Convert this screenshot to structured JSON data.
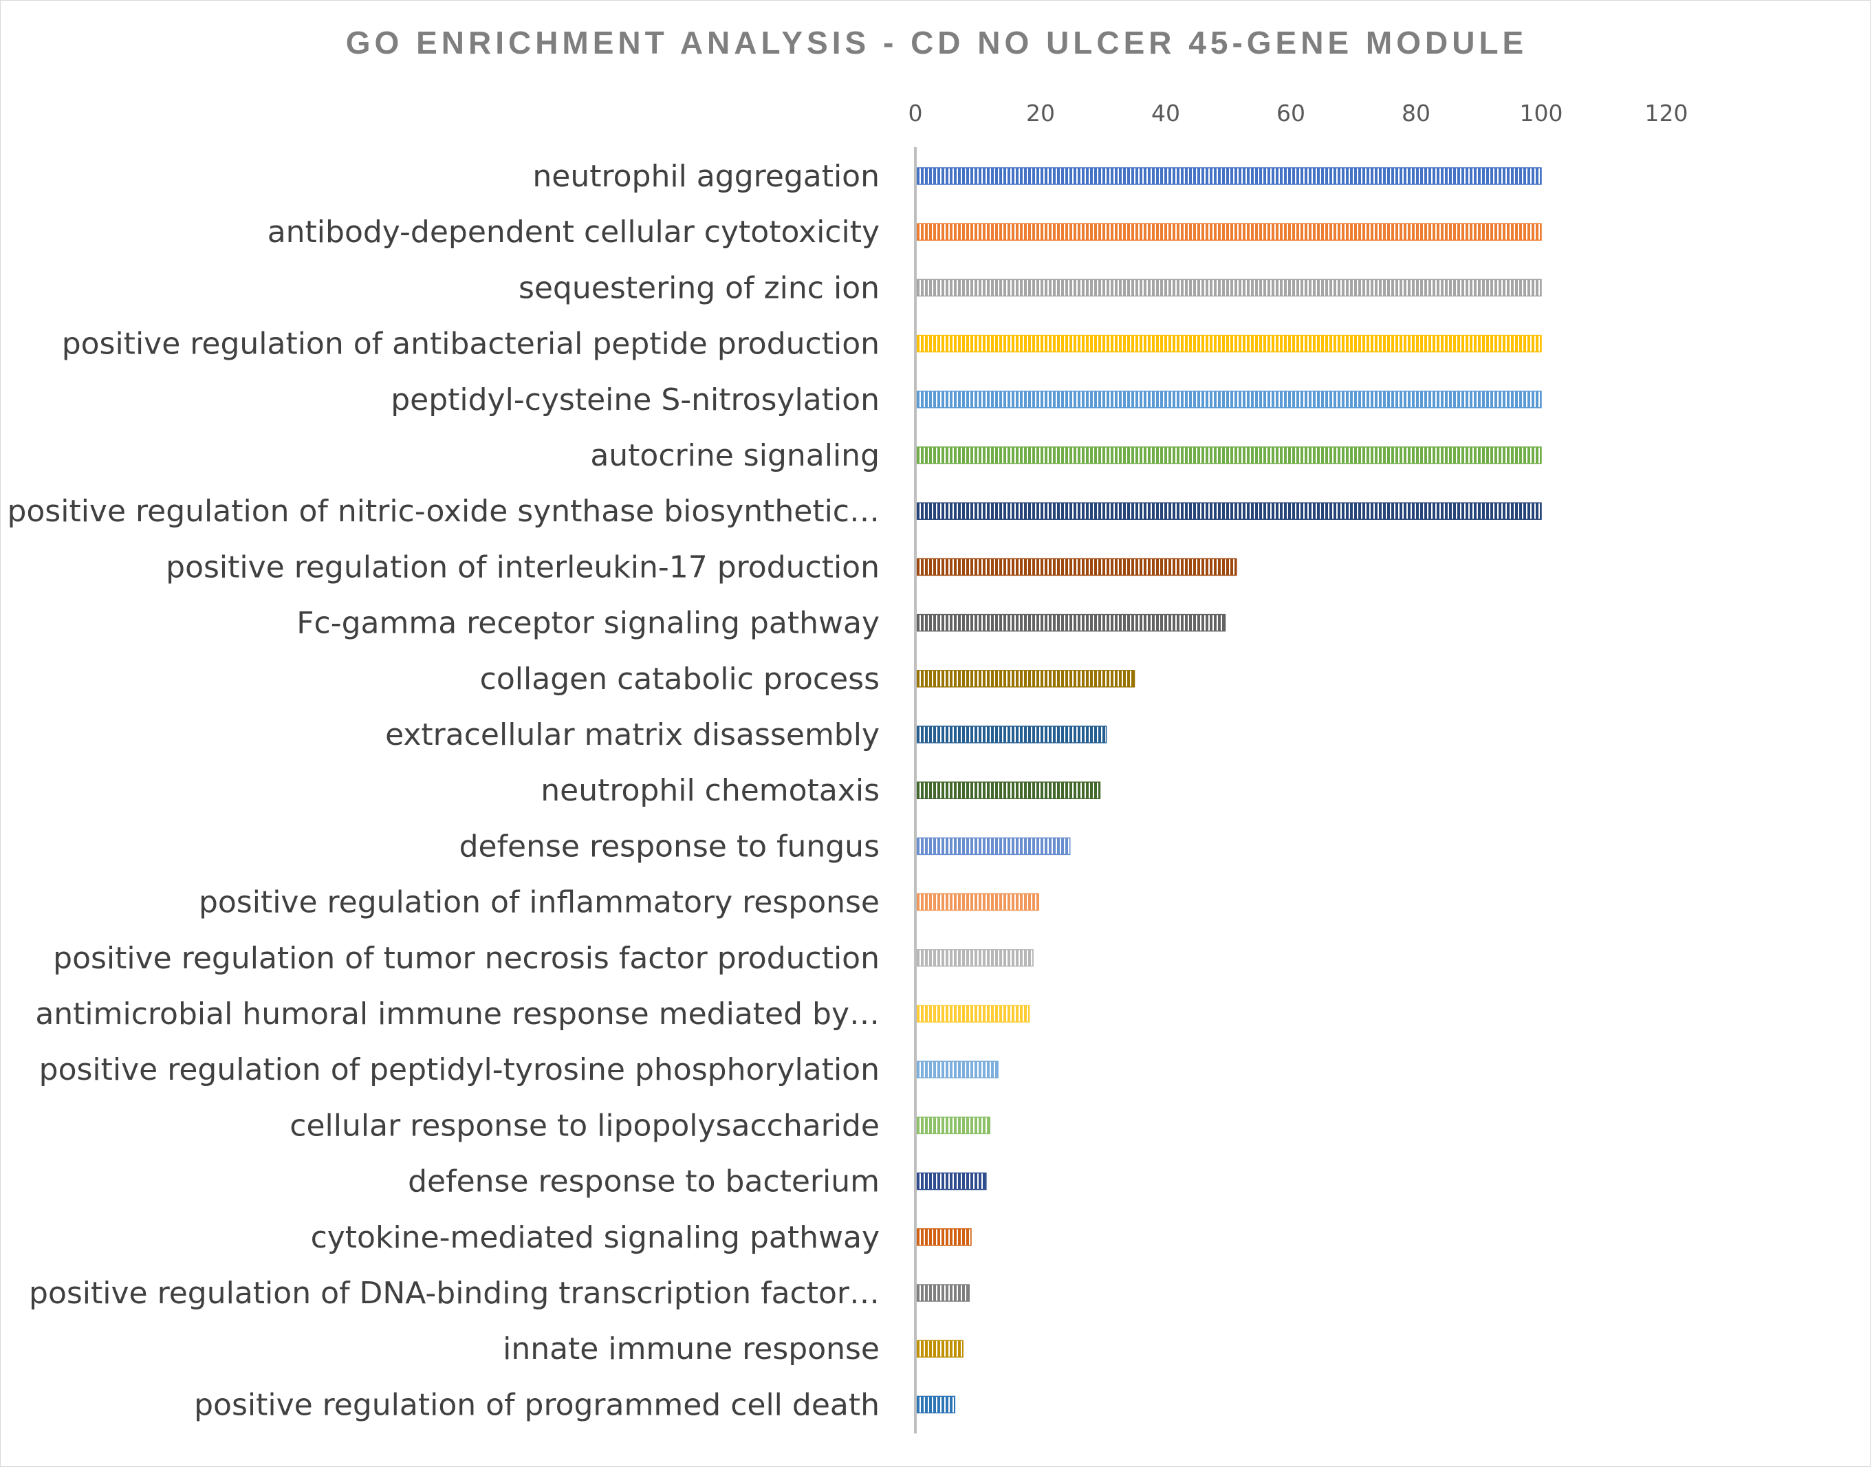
{
  "chart_data": {
    "type": "bar",
    "orientation": "horizontal",
    "title": "GO ENRICHMENT ANALYSIS - CD NO ULCER 45-GENE MODULE",
    "xlabel": "",
    "ylabel": "",
    "xlim": [
      0,
      120
    ],
    "x_ticks": [
      "0",
      "20",
      "40",
      "60",
      "80",
      "100",
      "120"
    ],
    "x_axis_position": "top",
    "grid": false,
    "legend": "none",
    "bar_fill": "vertical-stripes",
    "categories": [
      "neutrophil aggregation",
      "antibody-dependent cellular cytotoxicity",
      "sequestering of zinc ion",
      "positive regulation of antibacterial peptide production",
      "peptidyl-cysteine S-nitrosylation",
      "autocrine signaling",
      "positive regulation of nitric-oxide synthase biosynthetic…",
      "positive regulation of interleukin-17 production",
      "Fc-gamma receptor signaling pathway",
      "collagen catabolic process",
      "extracellular matrix disassembly",
      "neutrophil chemotaxis",
      "defense response to fungus",
      "positive regulation of inflammatory response",
      "positive regulation of tumor necrosis factor production",
      "antimicrobial humoral immune response mediated by…",
      "positive regulation of peptidyl-tyrosine phosphorylation",
      "cellular response to lipopolysaccharide",
      "defense response to bacterium",
      "cytokine-mediated signaling pathway",
      "positive regulation of DNA-binding transcription factor…",
      "innate immune response",
      "positive regulation of programmed cell death"
    ],
    "values": [
      100,
      100,
      100,
      100,
      100,
      100,
      100,
      51.3,
      49.5,
      35,
      30.5,
      29.5,
      24.7,
      19.7,
      18.8,
      18.2,
      13.2,
      11.9,
      11.3,
      8.9,
      8.6,
      7.6,
      6.3
    ],
    "colors": [
      "#4472C4",
      "#ED7D31",
      "#A5A5A5",
      "#FFC000",
      "#5B9BD5",
      "#70AD47",
      "#264478",
      "#9E480E",
      "#636363",
      "#997300",
      "#255E91",
      "#43682B",
      "#698ED0",
      "#F1975A",
      "#B7B7B7",
      "#FFCD33",
      "#7CAFDD",
      "#8CC168",
      "#2F4C8F",
      "#D26012",
      "#7F7F7F",
      "#C09000",
      "#2E75B6"
    ]
  }
}
